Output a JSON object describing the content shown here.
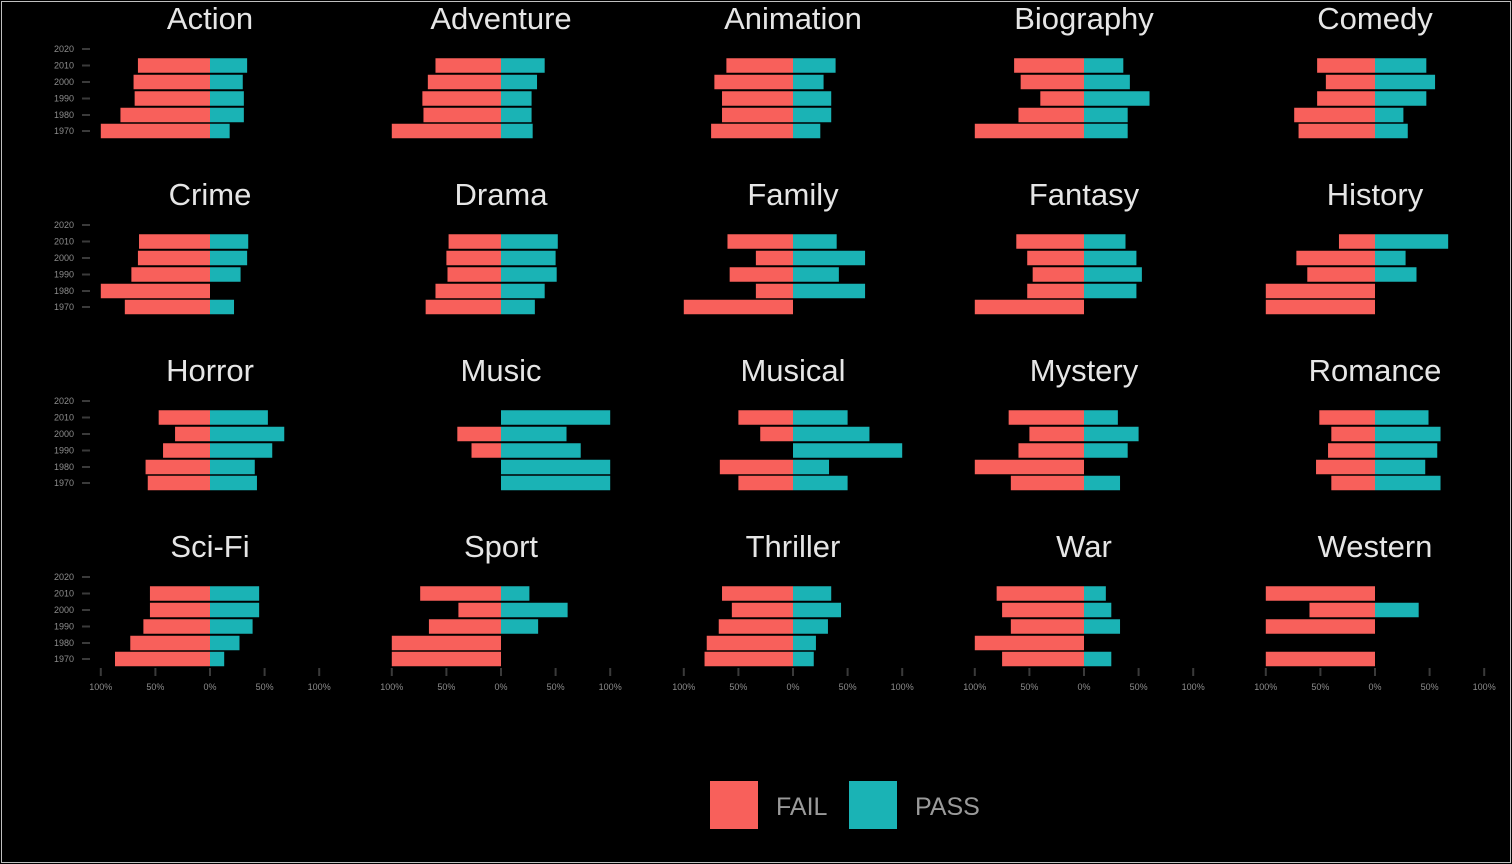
{
  "chart_data": {
    "type": "bar",
    "orientation": "horizontal",
    "layout": "diverging",
    "years": [
      "1970",
      "1980",
      "1990",
      "2000",
      "2010",
      "2020"
    ],
    "x_tick_labels": [
      "100%",
      "50%",
      "0%",
      "50%",
      "100%"
    ],
    "xlim": [
      -100,
      100
    ],
    "legend": {
      "position": "bottom",
      "entries": [
        {
          "name": "FAIL",
          "color": "#F8605B"
        },
        {
          "name": "PASS",
          "color": "#1AB3B5"
        }
      ]
    },
    "colors": {
      "fail": "#F8605B",
      "pass": "#1AB3B5",
      "background": "#000000"
    },
    "panels": [
      {
        "title": "Action",
        "fail": [
          100,
          82,
          69,
          70,
          66,
          null
        ],
        "pass": [
          18,
          31,
          31,
          30,
          34,
          null
        ]
      },
      {
        "title": "Adventure",
        "fail": [
          100,
          71,
          72,
          67,
          60,
          null
        ],
        "pass": [
          29,
          28,
          28,
          33,
          40,
          null
        ]
      },
      {
        "title": "Animation",
        "fail": [
          75,
          65,
          65,
          72,
          61,
          null
        ],
        "pass": [
          25,
          35,
          35,
          28,
          39,
          null
        ]
      },
      {
        "title": "Biography",
        "fail": [
          100,
          60,
          40,
          58,
          64,
          null
        ],
        "pass": [
          40,
          40,
          60,
          42,
          36,
          null
        ]
      },
      {
        "title": "Comedy",
        "fail": [
          70,
          74,
          53,
          45,
          53,
          null
        ],
        "pass": [
          30,
          26,
          47,
          55,
          47,
          null
        ]
      },
      {
        "title": "Crime",
        "fail": [
          78,
          100,
          72,
          66,
          65,
          null
        ],
        "pass": [
          22,
          0,
          28,
          34,
          35,
          null
        ]
      },
      {
        "title": "Drama",
        "fail": [
          69,
          60,
          49,
          50,
          48,
          null
        ],
        "pass": [
          31,
          40,
          51,
          50,
          52,
          null
        ]
      },
      {
        "title": "Family",
        "fail": [
          100,
          34,
          58,
          34,
          60,
          null
        ],
        "pass": [
          0,
          66,
          42,
          66,
          40,
          null
        ]
      },
      {
        "title": "Fantasy",
        "fail": [
          100,
          52,
          47,
          52,
          62,
          null
        ],
        "pass": [
          0,
          48,
          53,
          48,
          38,
          null
        ]
      },
      {
        "title": "History",
        "fail": [
          100,
          100,
          62,
          72,
          33,
          null
        ],
        "pass": [
          0,
          0,
          38,
          28,
          67,
          null
        ]
      },
      {
        "title": "Horror",
        "fail": [
          57,
          59,
          43,
          32,
          47,
          null
        ],
        "pass": [
          43,
          41,
          57,
          68,
          53,
          null
        ]
      },
      {
        "title": "Music",
        "fail": [
          0,
          0,
          27,
          40,
          0,
          null
        ],
        "pass": [
          100,
          100,
          73,
          60,
          100,
          null
        ]
      },
      {
        "title": "Musical",
        "fail": [
          50,
          67,
          0,
          30,
          50,
          null
        ],
        "pass": [
          50,
          33,
          100,
          70,
          50,
          null
        ]
      },
      {
        "title": "Mystery",
        "fail": [
          67,
          100,
          60,
          50,
          69,
          null
        ],
        "pass": [
          33,
          0,
          40,
          50,
          31,
          null
        ]
      },
      {
        "title": "Romance",
        "fail": [
          40,
          54,
          43,
          40,
          51,
          null
        ],
        "pass": [
          60,
          46,
          57,
          60,
          49,
          null
        ]
      },
      {
        "title": "Sci-Fi",
        "fail": [
          87,
          73,
          61,
          55,
          55,
          null
        ],
        "pass": [
          13,
          27,
          39,
          45,
          45,
          null
        ]
      },
      {
        "title": "Sport",
        "fail": [
          100,
          100,
          66,
          39,
          74,
          null
        ],
        "pass": [
          0,
          0,
          34,
          61,
          26,
          null
        ]
      },
      {
        "title": "Thriller",
        "fail": [
          81,
          79,
          68,
          56,
          65,
          null
        ],
        "pass": [
          19,
          21,
          32,
          44,
          35,
          null
        ]
      },
      {
        "title": "War",
        "fail": [
          75,
          100,
          67,
          75,
          80,
          null
        ],
        "pass": [
          25,
          0,
          33,
          25,
          20,
          null
        ]
      },
      {
        "title": "Western",
        "fail": [
          100,
          null,
          100,
          60,
          100,
          null
        ],
        "pass": [
          0,
          null,
          0,
          40,
          0,
          null
        ]
      }
    ]
  }
}
